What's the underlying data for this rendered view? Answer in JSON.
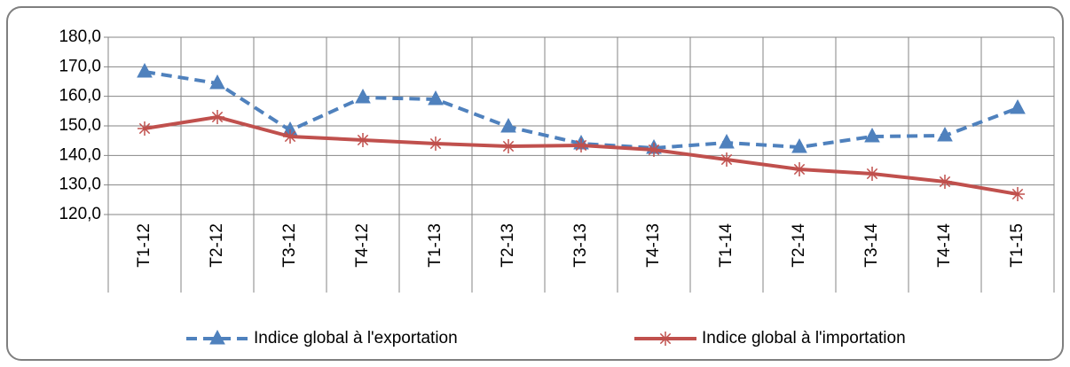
{
  "chart_data": {
    "type": "line",
    "categories": [
      "T1-12",
      "T2-12",
      "T3-12",
      "T4-12",
      "T1-13",
      "T2-13",
      "T3-13",
      "T4-13",
      "T1-14",
      "T2-14",
      "T3-14",
      "T4-14",
      "T1-15"
    ],
    "series": [
      {
        "name": "Indice global à l'exportation",
        "color": "#4f81bd",
        "line_style": "dashed",
        "marker": "triangle",
        "values": [
          168.3,
          164.4,
          148.5,
          159.6,
          159.0,
          149.7,
          144.0,
          142.5,
          144.3,
          142.8,
          146.4,
          146.7,
          156.0
        ]
      },
      {
        "name": "Indice global à l'importation",
        "color": "#c0504d",
        "line_style": "solid",
        "marker": "asterisk",
        "values": [
          149.1,
          153.0,
          146.4,
          145.2,
          144.0,
          143.1,
          143.4,
          141.9,
          138.6,
          135.3,
          133.8,
          131.1,
          126.9
        ]
      }
    ],
    "ylim": [
      120,
      180
    ],
    "yticks": [
      {
        "value": 120,
        "label": "120,0"
      },
      {
        "value": 130,
        "label": "130,0"
      },
      {
        "value": 140,
        "label": "140,0"
      },
      {
        "value": 150,
        "label": "150,0"
      },
      {
        "value": 160,
        "label": "160,0"
      },
      {
        "value": 170,
        "label": "170,0"
      },
      {
        "value": 180,
        "label": "180,0"
      }
    ],
    "grid": true,
    "legend": "bottom"
  }
}
